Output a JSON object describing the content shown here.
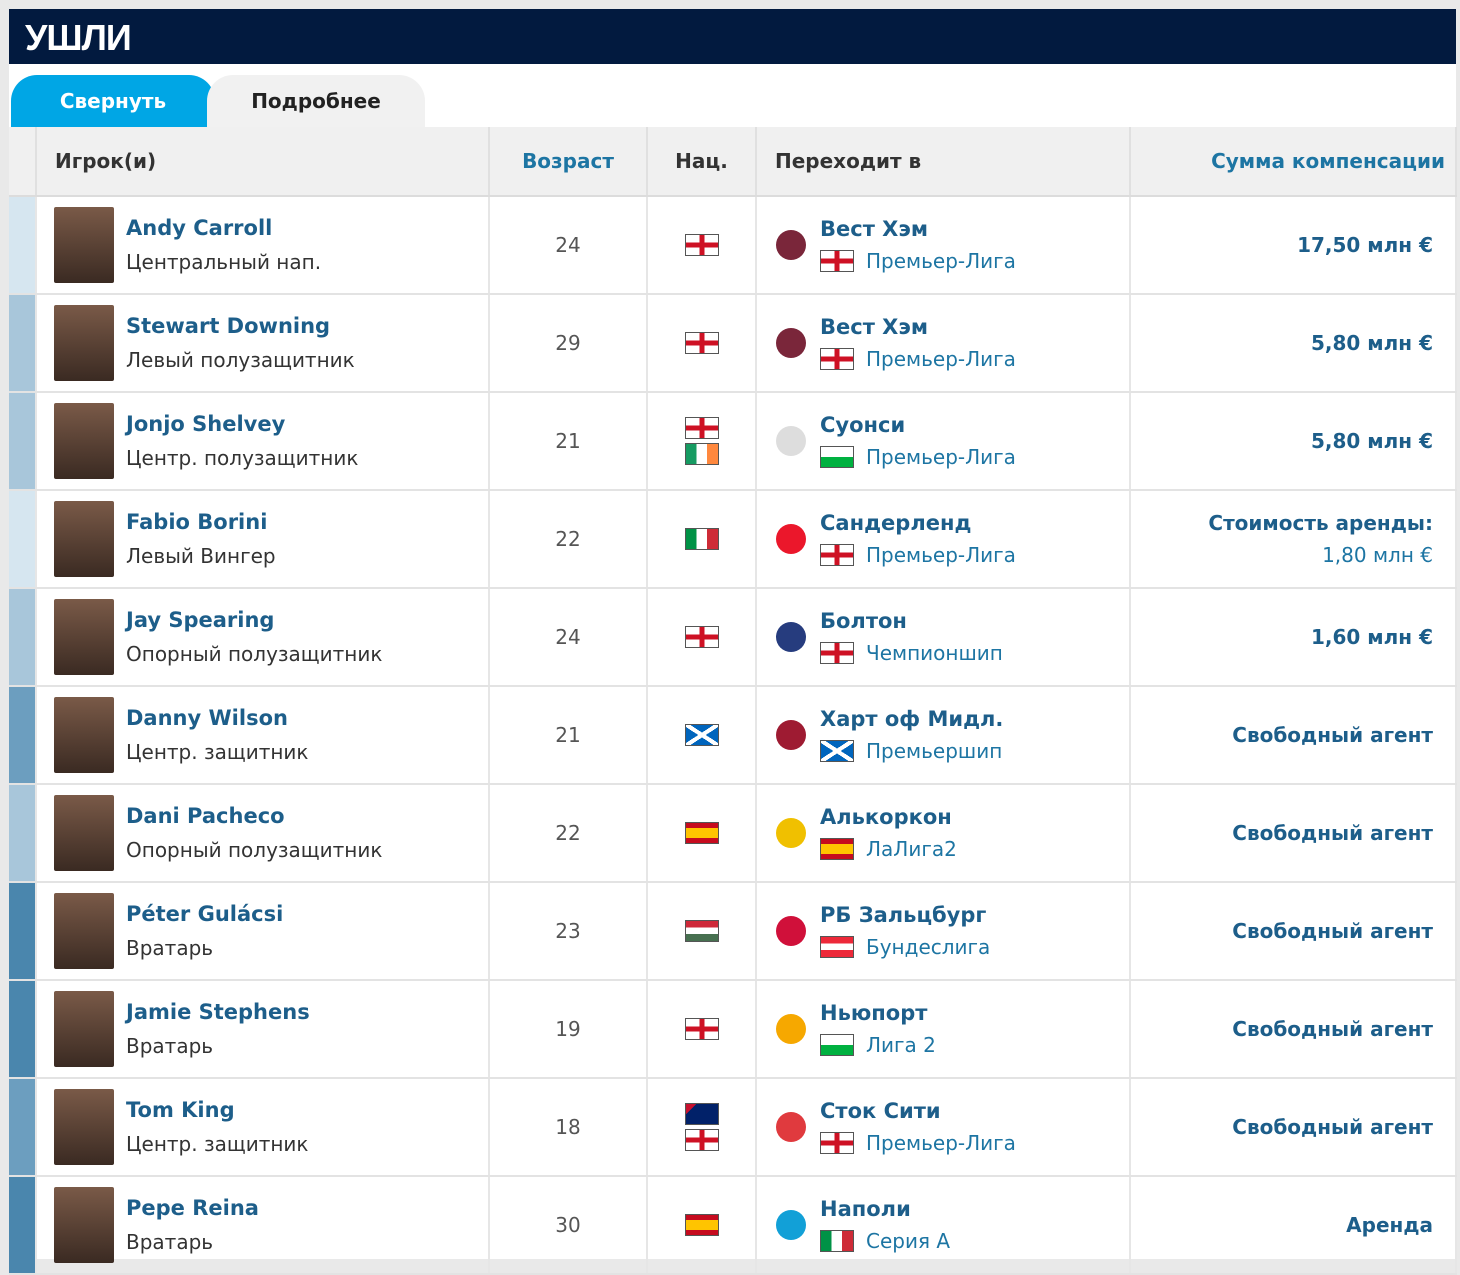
{
  "title": "УШЛИ",
  "tabs": {
    "collapse": "Свернуть",
    "details": "Подробнее"
  },
  "headers": {
    "player": "Игрок(и)",
    "age": "Возраст",
    "nat": "Нац.",
    "to": "Переходит в",
    "fee": "Сумма компенсации"
  },
  "colors": {
    "header_bg": "#021a3f",
    "tab_active": "#00a6e5",
    "link": "#1d5e8a"
  },
  "rows": [
    {
      "name": "Andy Carroll",
      "pos": "Центральный нап.",
      "age": "24",
      "nat": [
        "england"
      ],
      "club": "Вест Хэм",
      "league": "Премьер-Лига",
      "league_flag": "england",
      "fee": "17,50 млн €",
      "strip": "#d6e6f0"
    },
    {
      "name": "Stewart Downing",
      "pos": "Левый полузащитник",
      "age": "29",
      "nat": [
        "england"
      ],
      "club": "Вест Хэм",
      "league": "Премьер-Лига",
      "league_flag": "england",
      "fee": "5,80 млн €",
      "strip": "#a8c6da"
    },
    {
      "name": "Jonjo Shelvey",
      "pos": "Центр. полузащитник",
      "age": "21",
      "nat": [
        "england",
        "ireland"
      ],
      "club": "Суонси",
      "league": "Премьер-Лига",
      "league_flag": "wales",
      "fee": "5,80 млн €",
      "strip": "#a8c6da"
    },
    {
      "name": "Fabio Borini",
      "pos": "Левый Вингер",
      "age": "22",
      "nat": [
        "italy"
      ],
      "club": "Сандерленд",
      "league": "Премьер-Лига",
      "league_flag": "england",
      "fee": "Стоимость аренды:",
      "fee_sub": "1,80 млн €",
      "strip": "#d6e6f0"
    },
    {
      "name": "Jay Spearing",
      "pos": "Опорный полузащитник",
      "age": "24",
      "nat": [
        "england"
      ],
      "club": "Болтон",
      "league": "Чемпионшип",
      "league_flag": "england",
      "fee": "1,60 млн €",
      "strip": "#a8c6da"
    },
    {
      "name": "Danny Wilson",
      "pos": "Центр. защитник",
      "age": "21",
      "nat": [
        "scotland"
      ],
      "club": "Харт оф Мидл.",
      "league": "Премьершип",
      "league_flag": "scotland",
      "fee": "Свободный агент",
      "strip": "#6c9ebf"
    },
    {
      "name": "Dani Pacheco",
      "pos": "Опорный полузащитник",
      "age": "22",
      "nat": [
        "spain"
      ],
      "club": "Алькоркон",
      "league": "ЛаЛига2",
      "league_flag": "spain",
      "fee": "Свободный агент",
      "strip": "#a8c6da"
    },
    {
      "name": "Péter Gulácsi",
      "pos": "Вратарь",
      "age": "23",
      "nat": [
        "hungary"
      ],
      "club": "РБ Зальцбург",
      "league": "Бундеслига",
      "league_flag": "austria",
      "fee": "Свободный агент",
      "strip": "#4a86ad"
    },
    {
      "name": "Jamie Stephens",
      "pos": "Вратарь",
      "age": "19",
      "nat": [
        "england"
      ],
      "club": "Ньюпорт",
      "league": "Лига 2",
      "league_flag": "wales",
      "fee": "Свободный агент",
      "strip": "#4a86ad"
    },
    {
      "name": "Tom King",
      "pos": "Центр. защитник",
      "age": "18",
      "nat": [
        "australia",
        "england"
      ],
      "club": "Сток Сити",
      "league": "Премьер-Лига",
      "league_flag": "england",
      "fee": "Свободный агент",
      "strip": "#6c9ebf"
    },
    {
      "name": "Pepe Reina",
      "pos": "Вратарь",
      "age": "30",
      "nat": [
        "spain"
      ],
      "club": "Наполи",
      "league": "Серия А",
      "league_flag": "italy",
      "fee": "Аренда",
      "strip": "#4a86ad"
    }
  ]
}
